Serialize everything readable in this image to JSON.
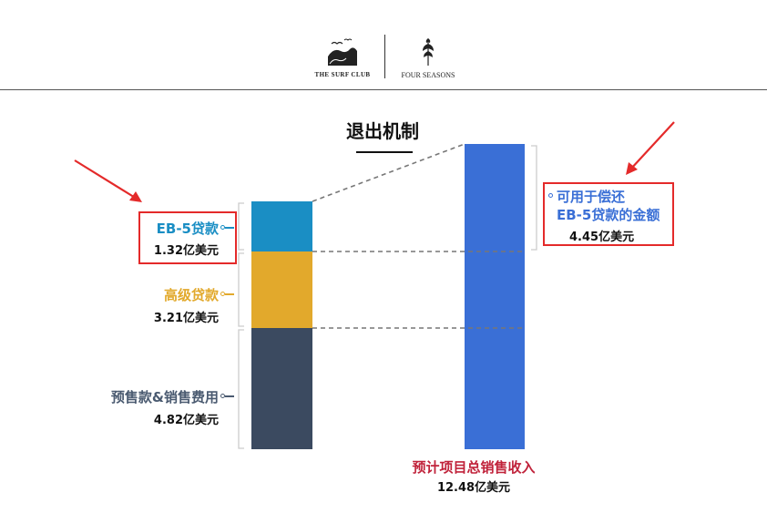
{
  "header": {
    "left_logo_text": "THE SURF CLUB",
    "right_logo_text": "FOUR SEASONS",
    "left_logo_icon": "wave-with-birds-icon",
    "right_logo_icon": "four-seasons-tree-icon"
  },
  "title": "退出机制",
  "colors": {
    "eb5": "#1a8ec4",
    "senior": "#e2a92c",
    "presale": "#3b4a60",
    "revenue": "#3a6fd6",
    "highlight_box": "#e42a2a",
    "label_gray": "#4a5a70",
    "bottom_label": "#c0223a"
  },
  "left_stack": {
    "segments": [
      {
        "name": "EB-5贷款",
        "amount": "1.32亿美元",
        "value": 1.32
      },
      {
        "name": "高级贷款",
        "amount": "3.21亿美元",
        "value": 3.21
      },
      {
        "name": "预售款&销售费用",
        "amount": "4.82亿美元",
        "value": 4.82
      }
    ]
  },
  "right_bar": {
    "label": "预计项目总销售收入",
    "amount": "12.48亿美元",
    "value": 12.48
  },
  "callout": {
    "line1": "可用于偿还",
    "line2": "EB-5贷款的金额",
    "amount": "4.45亿美元",
    "value": 4.45
  }
}
